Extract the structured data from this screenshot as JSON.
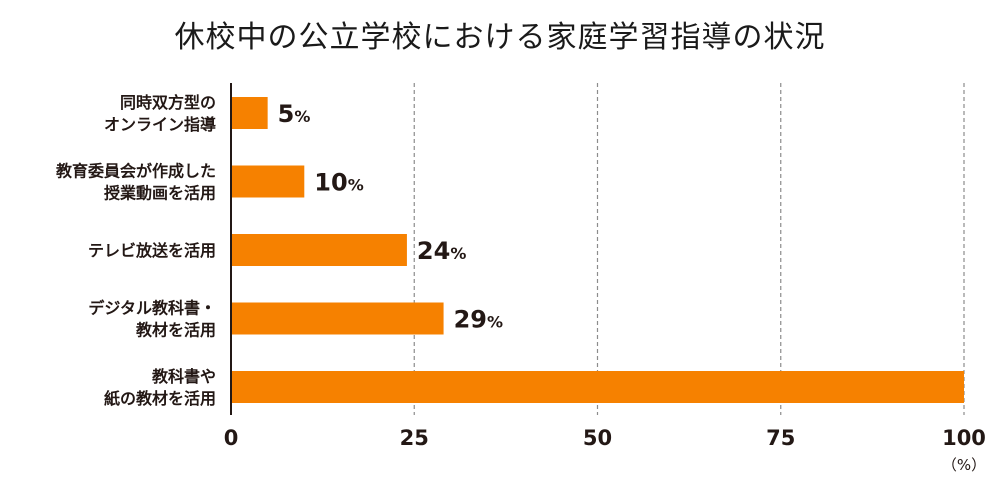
{
  "chart_data": {
    "type": "bar",
    "orientation": "horizontal",
    "title": "休校中の公立学校における家庭学習指導の状況",
    "categories": [
      [
        "同時双方型の",
        "オンライン指導"
      ],
      [
        "教育委員会が作成した",
        "授業動画を活用"
      ],
      [
        "テレビ放送を活用"
      ],
      [
        "デジタル教科書・",
        "教材を活用"
      ],
      [
        "教科書や",
        "紙の教材を活用"
      ]
    ],
    "values": [
      5,
      10,
      24,
      29,
      100
    ],
    "value_labels": [
      "5",
      "10",
      "24",
      "29",
      ""
    ],
    "value_suffix": "%",
    "x_ticks": [
      "0",
      "25",
      "50",
      "75",
      "100"
    ],
    "x_unit": "（%）",
    "xlim": [
      0,
      100
    ],
    "bar_color": "#f68100",
    "grid": "vertical dashed",
    "grid_color": "#8c8c8c",
    "legend": "none"
  }
}
